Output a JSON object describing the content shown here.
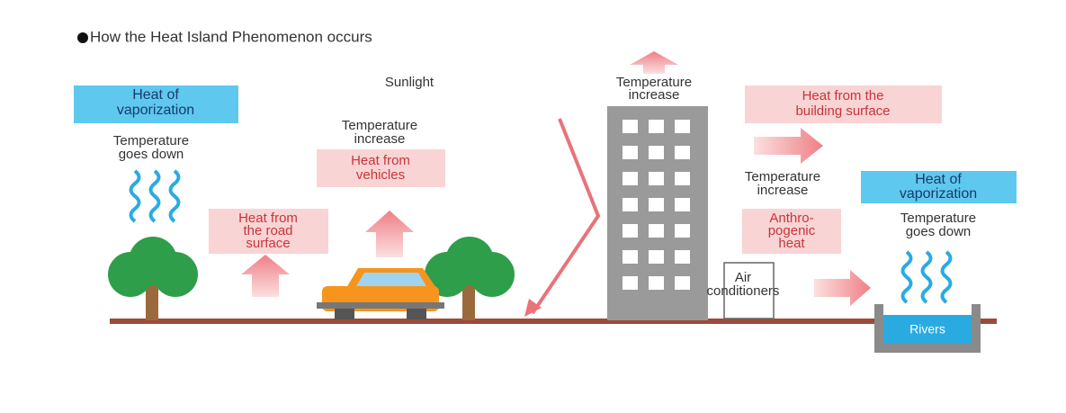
{
  "title": "How the Heat Island Phenomenon occurs",
  "labels": {
    "left_vapor": [
      "Heat of",
      "vaporization"
    ],
    "left_temp_down": [
      "Temperature",
      "goes down"
    ],
    "sunlight": [
      "Sunlight"
    ],
    "temp_increase_vehicles": [
      "Temperature",
      "increase"
    ],
    "heat_vehicles": [
      "Heat from",
      "vehicles"
    ],
    "heat_road": [
      "Heat from",
      "the road",
      "surface"
    ],
    "temp_increase_top": [
      "Temperature",
      "increase"
    ],
    "heat_building": [
      "Heat from the",
      "building surface"
    ],
    "temp_increase_mid": [
      "Temperature",
      "increase"
    ],
    "right_vapor": [
      "Heat of",
      "vaporization"
    ],
    "right_temp_down": [
      "Temperature",
      "goes down"
    ],
    "anthro": [
      "Anthro-",
      "pogenic",
      "heat"
    ],
    "air_cond": [
      "Air",
      "conditioners"
    ],
    "rivers": [
      "Rivers"
    ]
  }
}
